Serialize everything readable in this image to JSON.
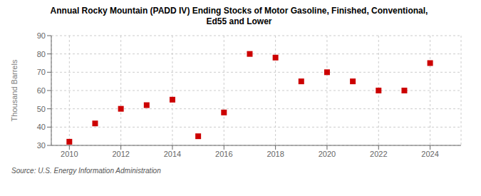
{
  "chart_data": {
    "type": "scatter",
    "title": "Annual Rocky Mountain (PADD IV) Ending Stocks of Motor Gasoline, Finished, Conventional,\nEd55 and Lower",
    "ylabel": "Thousand Barrels",
    "annotations": [
      "Source: U.S. Energy Information Administration"
    ],
    "x": [
      2010,
      2011,
      2012,
      2013,
      2014,
      2015,
      2016,
      2017,
      2018,
      2019,
      2020,
      2021,
      2022,
      2023,
      2024
    ],
    "values": [
      32,
      42,
      50,
      52,
      55,
      35,
      48,
      80,
      78,
      65,
      70,
      65,
      60,
      60,
      75
    ],
    "color": "#cc0000",
    "marker": "square",
    "xlim": [
      2009.3,
      2025.2
    ],
    "xticks": [
      2010,
      2012,
      2014,
      2016,
      2018,
      2020,
      2022,
      2024
    ],
    "ylim": [
      30,
      90
    ],
    "yticks": [
      30,
      40,
      50,
      60,
      70,
      80,
      90
    ],
    "grid": true
  }
}
